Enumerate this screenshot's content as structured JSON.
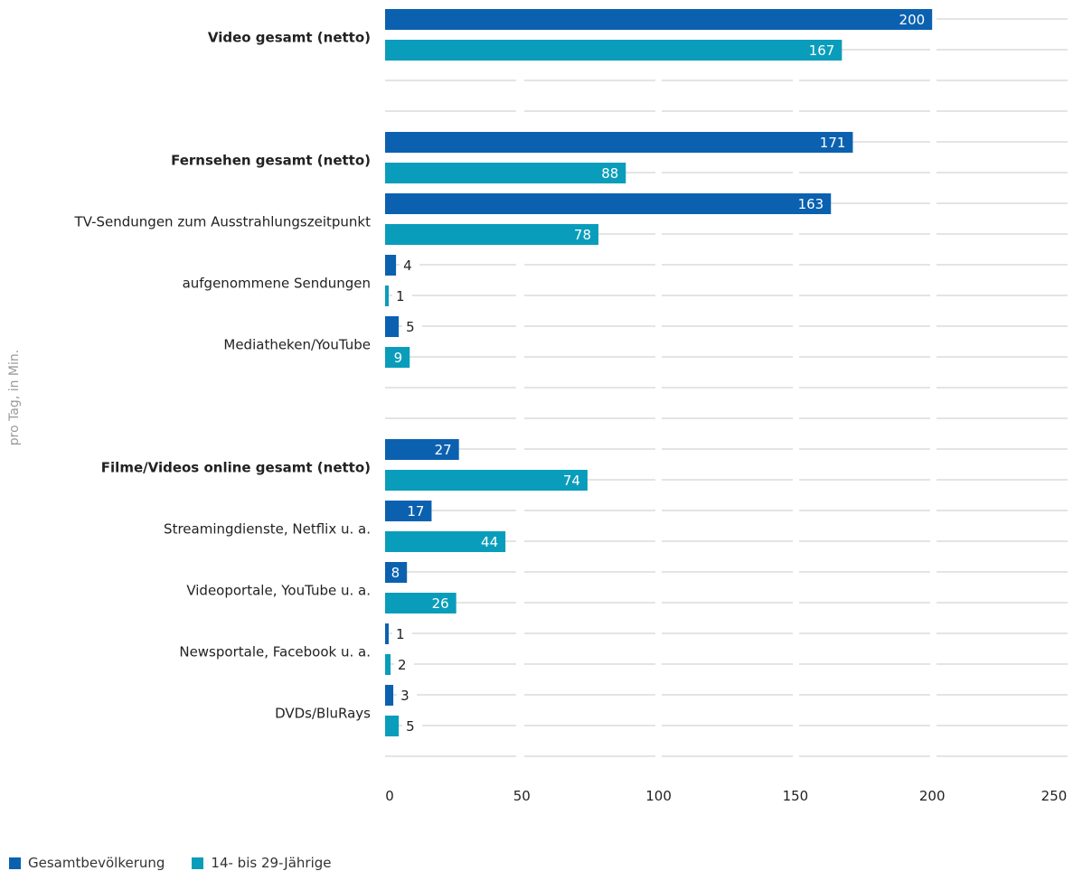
{
  "chart_data": {
    "type": "bar",
    "orientation": "horizontal",
    "ylabel": "pro Tag, in Min.",
    "xlim": [
      0,
      250
    ],
    "x_ticks": [
      "0",
      "50",
      "100",
      "150",
      "200",
      "250"
    ],
    "grid": true,
    "legend_position": "bottom-left",
    "categories": [
      {
        "label": "Video gesamt (netto)",
        "bold": true
      },
      {
        "label": "Fernsehen gesamt (netto)",
        "bold": true
      },
      {
        "label": "TV-Sendungen zum Ausstrahlungszeitpunkt",
        "bold": false
      },
      {
        "label": "aufgenommene Sendungen",
        "bold": false
      },
      {
        "label": "Mediatheken/YouTube",
        "bold": false
      },
      {
        "label": "Filme/Videos online gesamt (netto)",
        "bold": true
      },
      {
        "label": "Streamingdienste, Netflix u. a.",
        "bold": false
      },
      {
        "label": "Videoportale, YouTube u. a.",
        "bold": false
      },
      {
        "label": "Newsportale, Facebook u. a.",
        "bold": false
      },
      {
        "label": "DVDs/BluRays",
        "bold": false
      }
    ],
    "series": [
      {
        "name": "Gesamtbevölkerung",
        "color": "#0b61b0",
        "values": [
          200,
          171,
          163,
          4,
          5,
          27,
          17,
          8,
          1,
          3
        ]
      },
      {
        "name": "14- bis 29-Jährige",
        "color": "#0a9dbb",
        "values": [
          167,
          88,
          78,
          1,
          9,
          74,
          44,
          26,
          2,
          5
        ]
      }
    ]
  }
}
